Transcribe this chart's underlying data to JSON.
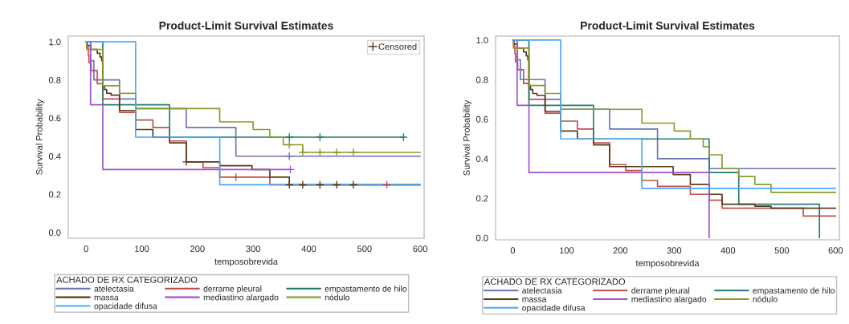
{
  "chart_data": [
    {
      "type": "step",
      "title": "Product-Limit Survival Estimates",
      "xlabel": "temposobrevida",
      "ylabel": "Survival Probability",
      "legend_title": "ACHADO DE RX CATEGORIZADO",
      "legend": "bottom",
      "grid": false,
      "xlim": [
        -32,
        607
      ],
      "ylim": [
        -0.03,
        1.03
      ],
      "xticks": [
        0,
        100,
        200,
        300,
        400,
        500,
        600
      ],
      "yticks": [
        {
          "value": 0,
          "label": "0.0"
        },
        {
          "value": 0.2,
          "label": "0.2"
        },
        {
          "value": 0.4,
          "label": "0.4"
        },
        {
          "value": 0.6,
          "label": "0.6"
        },
        {
          "value": 0.8,
          "label": "0.8"
        },
        {
          "value": 1,
          "label": "1.0"
        }
      ],
      "series": [
        {
          "name": "atelectasia",
          "color": "#6b73b5",
          "x": [
            0,
            8,
            14,
            60,
            89,
            180,
            269,
            330,
            600
          ],
          "values": [
            1.0,
            0.9,
            0.8,
            0.7,
            0.65,
            0.55,
            0.4,
            0.4,
            0.4
          ]
        },
        {
          "name": "derrame pleural",
          "color": "#c0504d",
          "x": [
            0,
            2,
            4,
            5,
            9,
            20,
            30,
            60,
            89,
            120,
            150,
            180,
            210,
            240,
            330,
            600
          ],
          "values": [
            1.0,
            0.97,
            0.93,
            0.89,
            0.85,
            0.78,
            0.7,
            0.63,
            0.59,
            0.55,
            0.48,
            0.37,
            0.34,
            0.29,
            0.25,
            0.25
          ]
        },
        {
          "name": "empastamento de hilo",
          "color": "#1f7f6f",
          "x": [
            0,
            30,
            150,
            570
          ],
          "values": [
            1.0,
            0.67,
            0.5,
            0.5
          ]
        },
        {
          "name": "massa",
          "color": "#5a3a1a",
          "x": [
            0,
            2,
            8,
            20,
            25,
            28,
            30,
            33,
            37,
            45,
            60,
            89,
            120,
            150,
            180,
            240,
            298,
            330,
            365,
            600
          ],
          "values": [
            1.0,
            0.98,
            0.96,
            0.94,
            0.92,
            0.9,
            0.77,
            0.75,
            0.73,
            0.72,
            0.64,
            0.54,
            0.5,
            0.47,
            0.37,
            0.35,
            0.33,
            0.29,
            0.25,
            0.25
          ]
        },
        {
          "name": "mediastino alargado",
          "color": "#a050d0",
          "x": [
            0,
            8,
            30,
            367
          ],
          "values": [
            1.0,
            0.67,
            0.33,
            0.33
          ]
        },
        {
          "name": "nódulo",
          "color": "#8a9a2a",
          "x": [
            0,
            1,
            30,
            60,
            89,
            240,
            300,
            330,
            354,
            389,
            600
          ],
          "values": [
            1.0,
            0.96,
            0.77,
            0.73,
            0.65,
            0.58,
            0.54,
            0.5,
            0.46,
            0.42,
            0.42
          ]
        },
        {
          "name": "opacidade difusa",
          "color": "#4aa8ff",
          "x": [
            0,
            89,
            240,
            600
          ],
          "values": [
            1.0,
            0.5,
            0.25,
            0.25
          ]
        },
        {
          "name": "Censored",
          "type": "scatter",
          "marker": "cross",
          "x": [
            365,
            420,
            570,
            365,
            365,
            389,
            420,
            450,
            480,
            367,
            269,
            540,
            180,
            365,
            389,
            420,
            450,
            480
          ],
          "values": [
            0.5,
            0.5,
            0.5,
            0.4,
            0.46,
            0.42,
            0.42,
            0.42,
            0.42,
            0.33,
            0.29,
            0.25,
            0.37,
            0.25,
            0.25,
            0.25,
            0.25,
            0.25
          ],
          "colors": [
            "#1f7f6f",
            "#1f7f6f",
            "#1f7f6f",
            "#6b73b5",
            "#8a9a2a",
            "#8a9a2a",
            "#8a9a2a",
            "#8a9a2a",
            "#8a9a2a",
            "#a050d0",
            "#c0504d",
            "#c0504d",
            "#5a3a1a",
            "#5a3a1a",
            "#5a3a1a",
            "#5a3a1a",
            "#5a3a1a",
            "#5a3a1a"
          ]
        }
      ]
    },
    {
      "type": "step",
      "title": "Product-Limit Survival Estimates",
      "xlabel": "temposobrevida",
      "ylabel": "Survival Probability",
      "legend_title": "ACHADO DE RX CATEGORIZADO",
      "legend": "bottom",
      "grid": false,
      "xlim": [
        -32,
        607
      ],
      "ylim": [
        -0.01,
        1.02
      ],
      "xticks": [
        0,
        100,
        200,
        300,
        400,
        500,
        600
      ],
      "yticks": [
        {
          "value": 0,
          "label": "0.0"
        },
        {
          "value": 0.2,
          "label": "0.2"
        },
        {
          "value": 0.4,
          "label": "0.4"
        },
        {
          "value": 0.6,
          "label": "0.6"
        },
        {
          "value": 0.8,
          "label": "0.8"
        },
        {
          "value": 1,
          "label": "1.0"
        }
      ],
      "series": [
        {
          "name": "atelectasia",
          "color": "#6b73b5",
          "x": [
            0,
            8,
            14,
            60,
            89,
            180,
            269,
            330,
            365,
            600
          ],
          "values": [
            1.0,
            0.9,
            0.8,
            0.7,
            0.65,
            0.55,
            0.4,
            0.4,
            0.35,
            0.35
          ]
        },
        {
          "name": "derrame pleural",
          "color": "#c0504d",
          "x": [
            0,
            2,
            4,
            5,
            9,
            20,
            30,
            60,
            89,
            120,
            150,
            180,
            210,
            240,
            269,
            330,
            365,
            389,
            540,
            600
          ],
          "values": [
            1.0,
            0.97,
            0.93,
            0.89,
            0.85,
            0.78,
            0.7,
            0.63,
            0.59,
            0.55,
            0.48,
            0.37,
            0.34,
            0.29,
            0.26,
            0.22,
            0.19,
            0.15,
            0.11,
            0.11
          ]
        },
        {
          "name": "empastamento de hilo",
          "color": "#1f7f6f",
          "x": [
            0,
            30,
            150,
            365,
            420,
            570
          ],
          "values": [
            1.0,
            0.67,
            0.5,
            0.33,
            0.17,
            0.0
          ]
        },
        {
          "name": "massa",
          "color": "#5a3a1a",
          "x": [
            0,
            2,
            8,
            20,
            25,
            28,
            30,
            33,
            37,
            45,
            60,
            89,
            120,
            150,
            180,
            298,
            330,
            365,
            389,
            450,
            480,
            600
          ],
          "values": [
            1.0,
            0.98,
            0.96,
            0.94,
            0.92,
            0.9,
            0.77,
            0.75,
            0.73,
            0.72,
            0.64,
            0.54,
            0.5,
            0.47,
            0.36,
            0.32,
            0.27,
            0.22,
            0.17,
            0.16,
            0.15,
            0.15
          ]
        },
        {
          "name": "mediastino alargado",
          "color": "#a050d0",
          "x": [
            0,
            8,
            30,
            365
          ],
          "values": [
            1.0,
            0.67,
            0.33,
            0.0
          ]
        },
        {
          "name": "nódulo",
          "color": "#8a9a2a",
          "x": [
            0,
            1,
            30,
            60,
            89,
            240,
            300,
            330,
            354,
            365,
            389,
            420,
            450,
            480,
            600
          ],
          "values": [
            1.0,
            0.96,
            0.77,
            0.73,
            0.65,
            0.58,
            0.54,
            0.5,
            0.46,
            0.42,
            0.35,
            0.31,
            0.27,
            0.23,
            0.23
          ]
        },
        {
          "name": "opacidade difusa",
          "color": "#4aa8ff",
          "x": [
            0,
            89,
            240,
            600
          ],
          "values": [
            1.0,
            0.5,
            0.25,
            0.25
          ]
        }
      ]
    }
  ]
}
